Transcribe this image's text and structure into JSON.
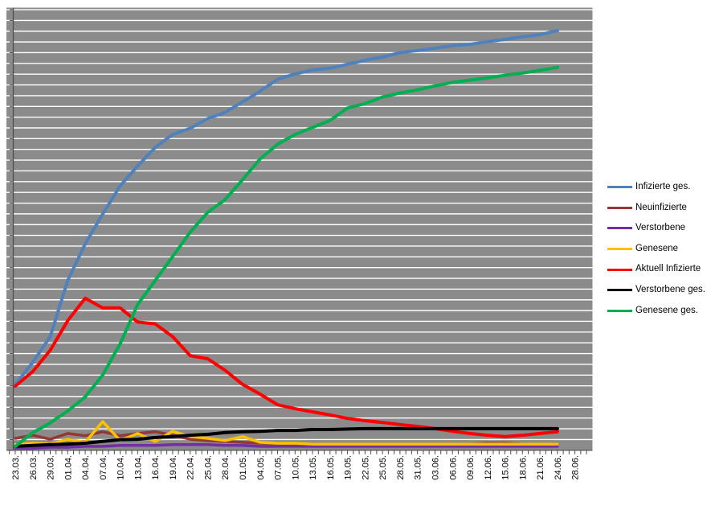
{
  "page": {
    "background_color": "#ffffff",
    "title": ""
  },
  "chart_data": {
    "type": "line",
    "title": "",
    "xlabel": "",
    "ylabel": "",
    "y_axis_numeric_labels_visible": false,
    "y_scale_note": "relative units 0-100 of plot height; axis shows tick marks only, no numbers",
    "ylim": [
      0,
      100
    ],
    "x_tick_interval_days": 3,
    "grid": "horizontal-white-lines-on-gray",
    "legend_position": "right",
    "plot": {
      "background_color": "#8B8B8B",
      "gridline_color": "#FFFFFF",
      "axis_color": "#4D4D4D"
    },
    "categories": [
      "23.03.",
      "26.03.",
      "29.03.",
      "01.04.",
      "04.04.",
      "07.04.",
      "10.04.",
      "13.04.",
      "16.04.",
      "19.04.",
      "22.04.",
      "25.04.",
      "28.04.",
      "01.05.",
      "04.05.",
      "07.05.",
      "10.05.",
      "13.05.",
      "16.05.",
      "19.05.",
      "22.05.",
      "25.05.",
      "28.05.",
      "31.05.",
      "03.06.",
      "06.06.",
      "09.06.",
      "12.06.",
      "15.06.",
      "18.06.",
      "21.06.",
      "24.06.",
      "28.06."
    ],
    "last_category_has_no_data": true,
    "series": [
      {
        "name": "Infizierte ges.",
        "slug": "infizierte-ges",
        "color": "#4F81BD",
        "width": 4,
        "values": [
          14.9,
          19.9,
          25.7,
          38.4,
          46.7,
          53.4,
          59.8,
          64.3,
          68.5,
          71.4,
          72.8,
          75.0,
          76.4,
          78.8,
          81.2,
          83.9,
          85.1,
          86.0,
          86.4,
          87.3,
          88.2,
          88.9,
          89.9,
          90.4,
          90.9,
          91.5,
          91.8,
          92.4,
          92.9,
          93.5,
          94.0,
          94.9
        ]
      },
      {
        "name": "Neuinfizierte",
        "slug": "neuinfizierte",
        "color": "#953735",
        "width": 3.5,
        "values": [
          2.7,
          3.4,
          2.5,
          3.8,
          3.3,
          4.2,
          3.3,
          3.8,
          4.2,
          3.4,
          2.5,
          2.2,
          2.0,
          1.8,
          1.6,
          1.6,
          1.6,
          1.4,
          1.4,
          1.4,
          1.4,
          1.4,
          1.4,
          1.4,
          1.4,
          1.4,
          1.4,
          1.6,
          1.6,
          1.4,
          1.4,
          1.4
        ]
      },
      {
        "name": "Verstorbene",
        "slug": "verstorbene",
        "color": "#7030A0",
        "width": 3.5,
        "values": [
          0.5,
          0.5,
          0.7,
          0.7,
          0.9,
          0.9,
          1.1,
          1.1,
          1.1,
          1.3,
          1.3,
          1.3,
          1.1,
          1.1,
          0.9,
          0.9,
          0.9,
          0.9,
          0.9,
          0.9,
          0.9,
          0.9,
          0.9,
          0.9,
          0.9,
          0.9,
          0.9,
          0.9,
          0.9,
          0.9,
          0.9,
          0.9
        ]
      },
      {
        "name": "Genesene",
        "slug": "genesene",
        "color": "#FFC000",
        "width": 3.5,
        "values": [
          1.3,
          1.6,
          1.4,
          2.5,
          1.8,
          6.5,
          2.2,
          3.8,
          2.0,
          4.3,
          3.1,
          2.7,
          2.2,
          3.1,
          1.8,
          1.6,
          1.6,
          1.4,
          1.4,
          1.4,
          1.4,
          1.4,
          1.4,
          1.4,
          1.4,
          1.4,
          1.4,
          1.4,
          1.4,
          1.4,
          1.4,
          1.4
        ]
      },
      {
        "name": "Aktuell Infizierte",
        "slug": "aktuell-infizierte",
        "color": "#FF0000",
        "width": 4,
        "values": [
          14.5,
          17.8,
          22.6,
          29.3,
          34.4,
          32.2,
          32.2,
          29.0,
          28.6,
          25.7,
          21.4,
          20.7,
          18.1,
          14.9,
          12.7,
          10.3,
          9.4,
          8.7,
          8.0,
          7.2,
          6.7,
          6.3,
          5.8,
          5.4,
          4.9,
          4.3,
          3.8,
          3.4,
          3.1,
          3.4,
          3.8,
          4.2
        ]
      },
      {
        "name": "Verstorbene ges.",
        "slug": "verstorbene-ges",
        "color": "#000000",
        "width": 4,
        "values": [
          0.9,
          1.1,
          1.3,
          1.4,
          1.6,
          2.0,
          2.4,
          2.5,
          2.9,
          3.1,
          3.4,
          3.6,
          4.0,
          4.2,
          4.3,
          4.5,
          4.5,
          4.7,
          4.7,
          4.8,
          4.9,
          4.9,
          4.9,
          4.9,
          4.9,
          4.9,
          4.9,
          4.9,
          4.9,
          4.9,
          4.9,
          4.9
        ]
      },
      {
        "name": "Genesene ges.",
        "slug": "genesene-ges",
        "color": "#00B050",
        "width": 4,
        "values": [
          0.9,
          4.0,
          6.2,
          8.9,
          12.1,
          17.0,
          24.1,
          33.0,
          38.4,
          43.8,
          49.3,
          53.8,
          56.7,
          61.2,
          65.9,
          69.2,
          71.4,
          73.0,
          74.6,
          77.4,
          78.4,
          79.9,
          80.8,
          81.5,
          82.4,
          83.2,
          83.7,
          84.2,
          84.8,
          85.3,
          85.9,
          86.6
        ]
      }
    ]
  }
}
